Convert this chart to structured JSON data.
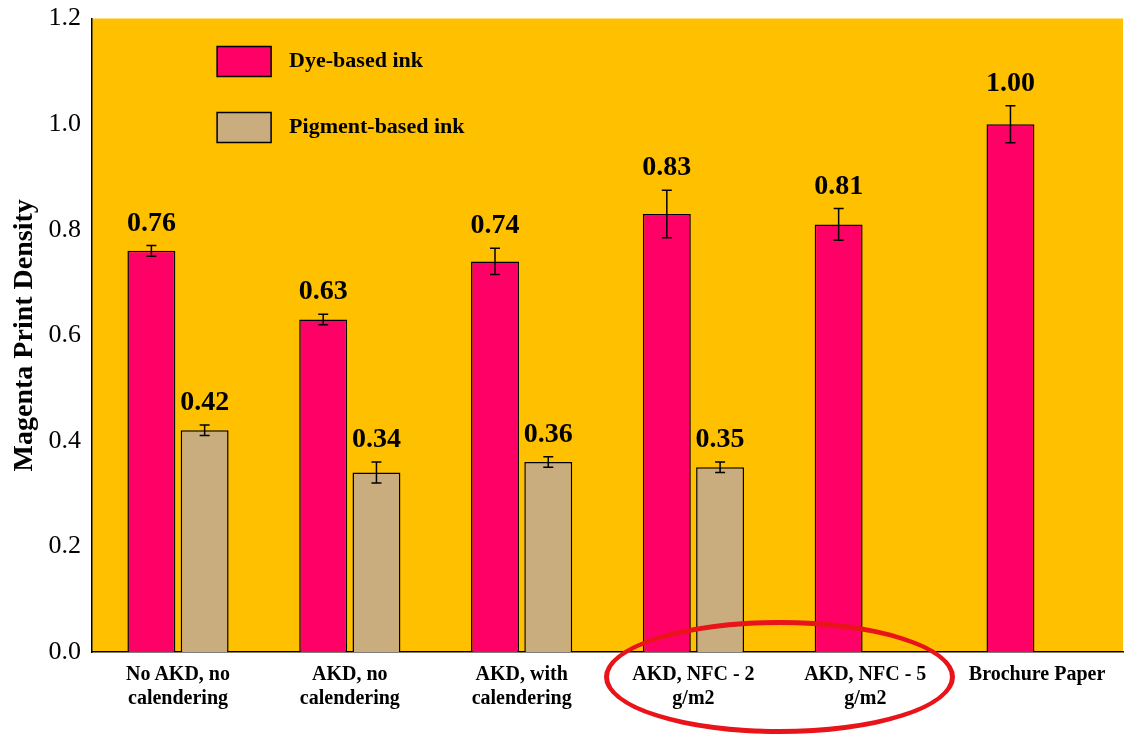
{
  "chart_data": {
    "type": "bar",
    "ylabel": "Magenta Print Density",
    "categories": [
      "No AKD, no calendering",
      "AKD, no calendering",
      "AKD, with calendering",
      "AKD, NFC - 2 g/m2",
      "AKD, NFC - 5 g/m2",
      "Brochure Paper"
    ],
    "series": [
      {
        "name": "Dye-based ink",
        "color": "#ff0066",
        "values": [
          0.76,
          0.63,
          0.74,
          0.83,
          0.81,
          1.0
        ],
        "errors": [
          0.01,
          0.01,
          0.025,
          0.045,
          0.03,
          0.035
        ],
        "value_labels": [
          "0.76",
          "0.63",
          "0.74",
          "0.83",
          "0.81",
          "1.00"
        ]
      },
      {
        "name": "Pigment-based ink",
        "color": "#c9ad7f",
        "values": [
          0.42,
          0.34,
          0.36,
          0.35,
          null,
          null
        ],
        "errors": [
          0.01,
          0.02,
          0.01,
          0.01,
          null,
          null
        ],
        "value_labels": [
          "0.42",
          "0.34",
          "0.36",
          "0.35",
          null,
          null
        ]
      }
    ],
    "ylim": [
      0,
      1.2
    ],
    "yticks": [
      {
        "value": 0,
        "label": "0.0"
      },
      {
        "value": 0.2,
        "label": "0.2"
      },
      {
        "value": 0.4,
        "label": "0.4"
      },
      {
        "value": 0.6,
        "label": "0.6"
      },
      {
        "value": 0.8,
        "label": "0.8"
      },
      {
        "value": 1.0,
        "label": "1.0"
      },
      {
        "value": 1.2,
        "label": "1.2"
      }
    ],
    "grid": false,
    "legend": "top left"
  }
}
